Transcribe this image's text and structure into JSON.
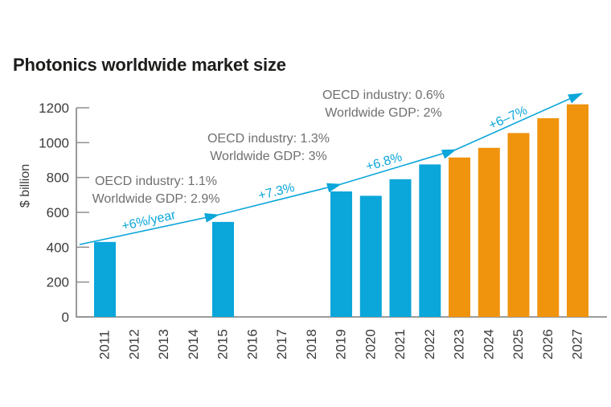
{
  "chart_data": {
    "type": "bar",
    "title": "Photonics worldwide market size",
    "ylabel": "$ billion",
    "ylim": [
      0,
      1200
    ],
    "yticks": [
      0,
      200,
      400,
      600,
      800,
      1000,
      1200
    ],
    "x_categories": [
      "2011",
      "2012",
      "2013",
      "2014",
      "2015",
      "2016",
      "2017",
      "2018",
      "2019",
      "2020",
      "2021",
      "2022",
      "2023",
      "2024",
      "2025",
      "2026",
      "2027"
    ],
    "bars": [
      {
        "year": "2011",
        "value": 430,
        "segment": "actual"
      },
      {
        "year": "2015",
        "value": 545,
        "segment": "actual"
      },
      {
        "year": "2019",
        "value": 720,
        "segment": "actual"
      },
      {
        "year": "2020",
        "value": 695,
        "segment": "actual"
      },
      {
        "year": "2021",
        "value": 790,
        "segment": "actual"
      },
      {
        "year": "2022",
        "value": 875,
        "segment": "actual"
      },
      {
        "year": "2023",
        "value": 915,
        "segment": "forecast"
      },
      {
        "year": "2024",
        "value": 970,
        "segment": "forecast"
      },
      {
        "year": "2025",
        "value": 1055,
        "segment": "forecast"
      },
      {
        "year": "2026",
        "value": 1140,
        "segment": "forecast"
      },
      {
        "year": "2027",
        "value": 1220,
        "segment": "forecast"
      }
    ],
    "trend_labels": [
      "+6%/year",
      "+7.3%",
      "+6.8%",
      "+6–7%"
    ],
    "annotations": [
      {
        "lines": [
          "OECD industry: 1.1%",
          "Worldwide GDP: 2.9%"
        ]
      },
      {
        "lines": [
          "OECD industry: 1.3%",
          "Worldwide GDP: 3%"
        ]
      },
      {
        "lines": [
          "OECD industry: 0.6%",
          "Worldwide GDP: 2%"
        ]
      }
    ],
    "colors": {
      "actual_bar": "#0ba6da",
      "forecast_bar": "#f0930d",
      "trend_line": "#0ba6da",
      "axis": "#8f8e8e",
      "tick_text": "#3c3c3b",
      "annotation_text": "#706f6f",
      "title_text": "#1d1d1b"
    },
    "grid": false,
    "legend": null
  }
}
